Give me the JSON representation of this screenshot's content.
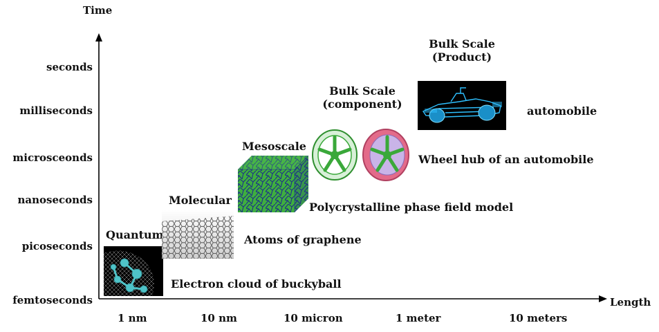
{
  "axes": {
    "y_label": "Time",
    "x_label": "Length",
    "y_ticks": [
      "seconds",
      "milliseconds",
      "microsceonds",
      "nanoseconds",
      "picoseconds",
      "femtoseconds"
    ],
    "x_ticks": [
      "1 nm",
      "10 nm",
      "10 micron",
      "1 meter",
      "10 meters"
    ]
  },
  "stages": {
    "quantum": {
      "label": "Quantum",
      "description": "Electron cloud of buckyball"
    },
    "molecular": {
      "label": "Molecular",
      "description": "Atoms of graphene"
    },
    "mesoscale": {
      "label": "Mesoscale",
      "description": "Polycrystalline phase field model"
    },
    "component": {
      "label_line1": "Bulk Scale",
      "label_line2": "(component)",
      "description": "Wheel hub of an automobile"
    },
    "product": {
      "label_line1": "Bulk Scale",
      "label_line2": "(Product)",
      "description": "automobile"
    }
  },
  "colors": {
    "axis": "#000000",
    "buckyball": "#4fc3c8",
    "graphene": "#9a9a9a",
    "grain_green": "#3fae3f",
    "grain_blue": "#1c2f8a",
    "wheel_green": "#3aa83a",
    "wheel_pink": "#e36b8a",
    "car_cyan": "#2ec0ff"
  }
}
